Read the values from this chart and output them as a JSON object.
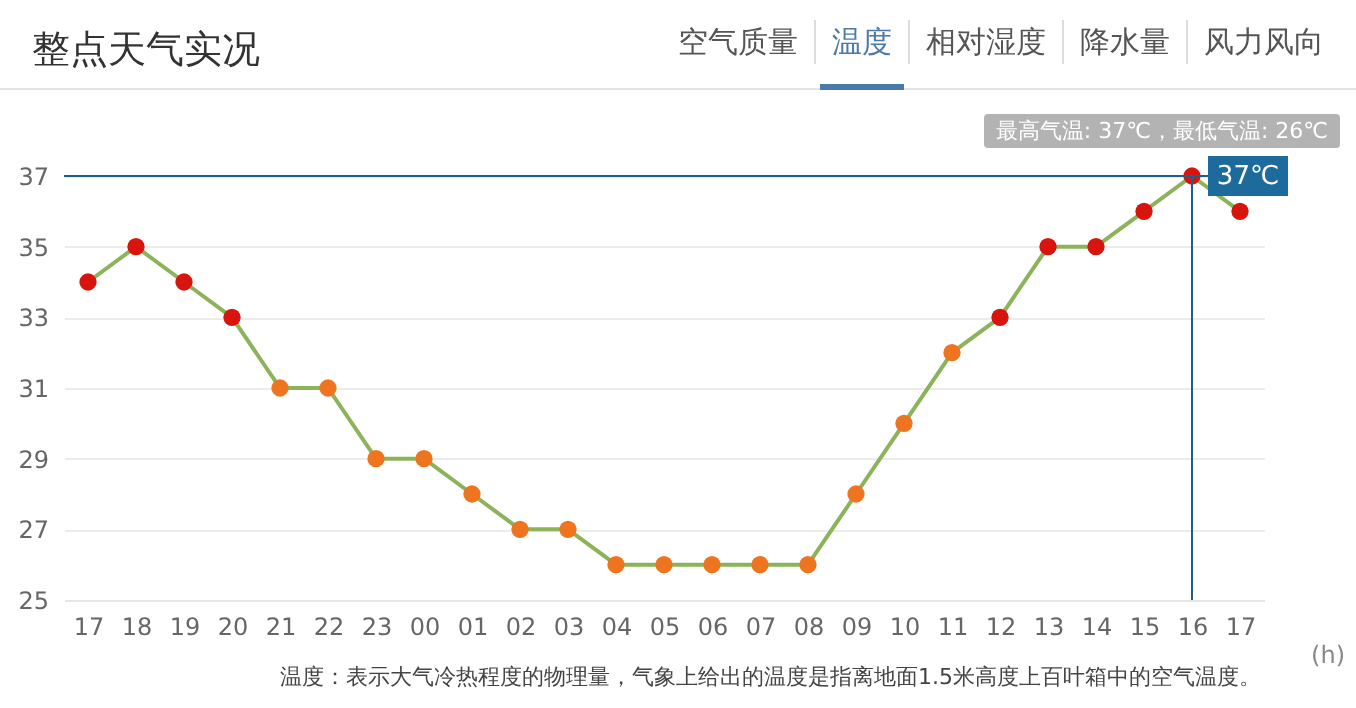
{
  "chart_data": {
    "type": "line",
    "title": "整点天气实况",
    "xlabel": "(h)",
    "categories": [
      "17",
      "18",
      "19",
      "20",
      "21",
      "22",
      "23",
      "00",
      "01",
      "02",
      "03",
      "04",
      "05",
      "06",
      "07",
      "08",
      "09",
      "10",
      "11",
      "12",
      "13",
      "14",
      "15",
      "16",
      "17"
    ],
    "series": [
      {
        "color": "#8db35a",
        "values": [
          34,
          35,
          34,
          33,
          31,
          31,
          29,
          29,
          28,
          27,
          27,
          26,
          26,
          26,
          26,
          26,
          28,
          30,
          32,
          33,
          35,
          35,
          36,
          37,
          36
        ],
        "colors": [
          "#d8140f",
          "#d8140f",
          "#d8140f",
          "#d8140f",
          "#ee7420",
          "#ee7420",
          "#ee7420",
          "#ee7420",
          "#ee7420",
          "#ee7420",
          "#ee7420",
          "#ee7420",
          "#ee7420",
          "#ee7420",
          "#ee7420",
          "#ee7420",
          "#ee7420",
          "#ee7420",
          "#ee7420",
          "#d8140f",
          "#d8140f",
          "#d8140f",
          "#d8140f",
          "#d8140f",
          "#d8140f"
        ]
      }
    ],
    "ref_lines": [
      {
        "axis": "y",
        "value": 37,
        "color": "#1d5f8a"
      },
      {
        "axis": "x",
        "value": "16",
        "color": "#1d5f8a"
      }
    ],
    "ylim": [
      25,
      37
    ],
    "yticks": [
      25,
      27,
      29,
      31,
      33,
      35,
      37
    ],
    "grid": "y",
    "marker": "circle",
    "line_style": "solid",
    "annotations": [
      "空气质量",
      "温度",
      "相对湿度",
      "降水量",
      "风力风向",
      "最高气温: 37℃，最低气温: 26℃",
      {
        "text": "37℃",
        "x": "16",
        "y": 37
      },
      "温度：表示大气冷热程度的物理量，气象上给出的温度是指离地面1.5米高度上百叶箱中的空气温度。"
    ]
  }
}
